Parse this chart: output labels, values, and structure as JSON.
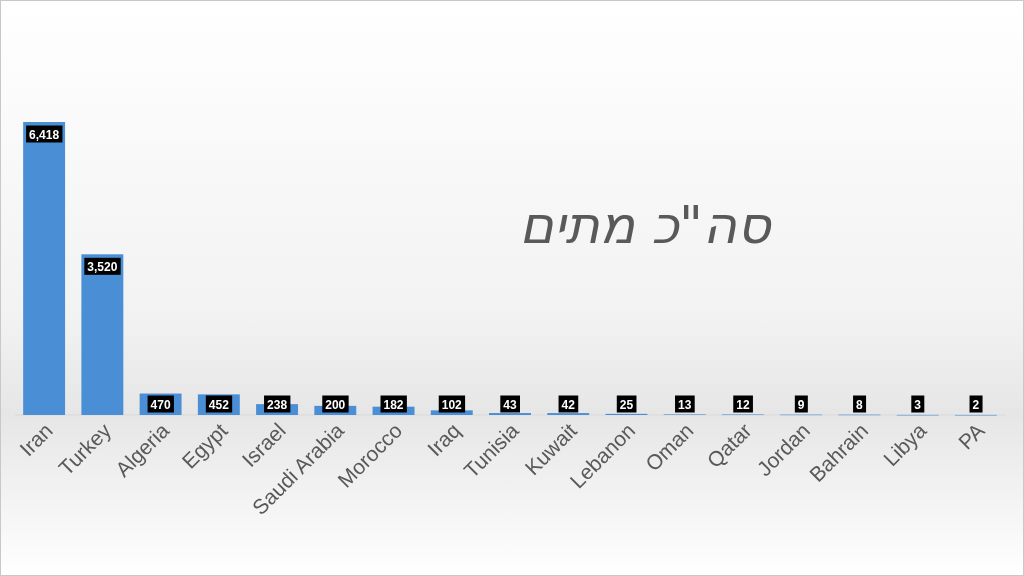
{
  "chart_data": {
    "type": "bar",
    "title": "סה\"כ מתים",
    "categories": [
      "Iran",
      "Turkey",
      "Algeria",
      "Egypt",
      "Israel",
      "Saudi Arabia",
      "Morocco",
      "Iraq",
      "Tunisia",
      "Kuwait",
      "Lebanon",
      "Oman",
      "Qatar",
      "Jordan",
      "Bahrain",
      "Libya",
      "PA"
    ],
    "values": [
      6418,
      3520,
      470,
      452,
      238,
      200,
      182,
      102,
      43,
      42,
      25,
      13,
      12,
      9,
      8,
      3,
      2
    ],
    "value_labels": [
      "6,418",
      "3,520",
      "470",
      "452",
      "238",
      "200",
      "182",
      "102",
      "43",
      "42",
      "25",
      "13",
      "12",
      "9",
      "8",
      "3",
      "2"
    ],
    "color": "#4a8fd6"
  }
}
